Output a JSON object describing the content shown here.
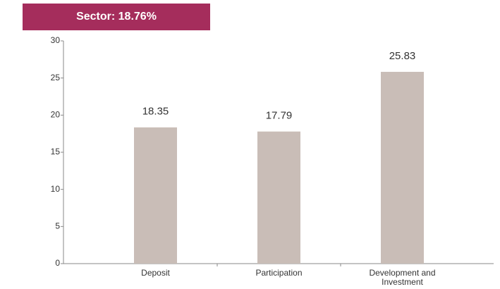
{
  "chart_data": {
    "type": "bar",
    "title": "Sector: 18.76%",
    "categories": [
      "Deposit",
      "Participation",
      "Development and Investment"
    ],
    "values": [
      18.35,
      17.79,
      25.83
    ],
    "color": "#c9bdb7",
    "ylim": [
      0,
      30
    ],
    "yticks": [
      0,
      5,
      10,
      15,
      20,
      25,
      30
    ],
    "grid": false
  }
}
